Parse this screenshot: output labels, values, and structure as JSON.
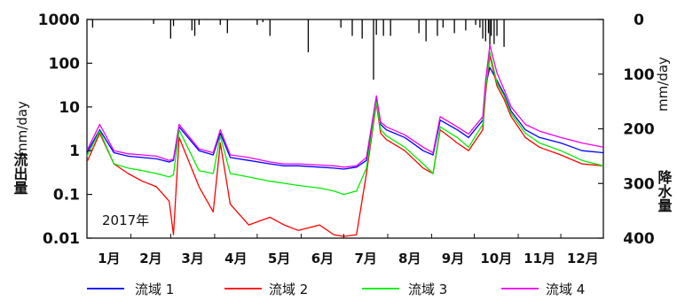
{
  "chart_data": {
    "type": "line",
    "annotation": "2017年",
    "left_axis": {
      "label_name": "流出量",
      "label_unit": "mm/day",
      "scale": "log",
      "ylim": [
        0.01,
        1000
      ],
      "ticks": [
        "0.01",
        "0.1",
        "1",
        "10",
        "100",
        "1000"
      ]
    },
    "right_axis": {
      "label_name": "降水量",
      "label_unit": "mm/day",
      "inverted": true,
      "ylim": [
        0,
        400
      ],
      "ticks": [
        "0",
        "100",
        "200",
        "300",
        "400"
      ]
    },
    "x_ticks": [
      "1月",
      "2月",
      "3月",
      "4月",
      "5月",
      "6月",
      "7月",
      "8月",
      "9月",
      "10月",
      "11月",
      "12月"
    ],
    "legend_position": "bottom",
    "series": [
      {
        "name": "流域 1",
        "color": "#0000ff",
        "x": [
          1,
          10,
          20,
          30,
          40,
          50,
          59,
          62,
          66,
          80,
          90,
          95,
          102,
          115,
          130,
          140,
          150,
          165,
          175,
          182,
          191,
          198,
          205,
          208,
          212,
          225,
          238,
          245,
          250,
          262,
          270,
          280,
          282,
          285,
          290,
          295,
          300,
          310,
          320,
          335,
          350,
          365
        ],
        "y": [
          0.9,
          3.0,
          0.9,
          0.75,
          0.7,
          0.65,
          0.55,
          0.6,
          3.5,
          1.0,
          0.8,
          2.5,
          0.7,
          0.6,
          0.5,
          0.45,
          0.45,
          0.42,
          0.4,
          0.38,
          0.42,
          0.6,
          15.0,
          4.0,
          3.0,
          2.0,
          1.0,
          0.8,
          5.0,
          3.0,
          2.0,
          5.0,
          30.0,
          80.0,
          40.0,
          20.0,
          8.0,
          3.0,
          2.0,
          1.5,
          1.0,
          0.9
        ]
      },
      {
        "name": "流域 2",
        "color": "#ff0000",
        "x": [
          1,
          10,
          20,
          30,
          40,
          50,
          59,
          62,
          66,
          80,
          90,
          95,
          102,
          115,
          130,
          140,
          150,
          165,
          175,
          182,
          191,
          198,
          205,
          208,
          212,
          225,
          238,
          245,
          250,
          262,
          270,
          280,
          282,
          285,
          290,
          295,
          300,
          310,
          320,
          335,
          350,
          365
        ],
        "y": [
          0.55,
          2.5,
          0.5,
          0.3,
          0.2,
          0.15,
          0.07,
          0.012,
          2.0,
          0.15,
          0.04,
          1.5,
          0.06,
          0.02,
          0.03,
          0.02,
          0.015,
          0.02,
          0.012,
          0.011,
          0.012,
          0.3,
          12.0,
          2.5,
          1.8,
          1.0,
          0.4,
          0.3,
          3.0,
          1.5,
          1.0,
          3.0,
          20.0,
          150.0,
          30.0,
          15.0,
          6.0,
          2.0,
          1.2,
          0.8,
          0.5,
          0.45
        ]
      },
      {
        "name": "流域 3",
        "color": "#00ee00",
        "x": [
          1,
          10,
          20,
          30,
          40,
          50,
          59,
          62,
          66,
          80,
          90,
          95,
          102,
          115,
          130,
          140,
          150,
          165,
          175,
          182,
          191,
          198,
          205,
          208,
          212,
          225,
          238,
          245,
          250,
          262,
          270,
          280,
          282,
          285,
          290,
          295,
          300,
          310,
          320,
          335,
          350,
          365
        ],
        "y": [
          0.75,
          2.8,
          0.5,
          0.4,
          0.35,
          0.3,
          0.25,
          0.28,
          3.0,
          0.35,
          0.3,
          2.2,
          0.3,
          0.25,
          0.2,
          0.18,
          0.16,
          0.14,
          0.12,
          0.1,
          0.12,
          0.4,
          13.0,
          3.0,
          2.2,
          1.2,
          0.5,
          0.3,
          3.5,
          2.0,
          1.2,
          4.0,
          25.0,
          180.0,
          35.0,
          18.0,
          7.0,
          2.5,
          1.5,
          1.0,
          0.6,
          0.45
        ]
      },
      {
        "name": "流域 4",
        "color": "#ee00ee",
        "x": [
          1,
          10,
          20,
          30,
          40,
          50,
          59,
          62,
          66,
          80,
          90,
          95,
          102,
          115,
          130,
          140,
          150,
          165,
          175,
          182,
          191,
          198,
          205,
          208,
          212,
          225,
          238,
          245,
          250,
          262,
          270,
          280,
          282,
          285,
          290,
          295,
          300,
          310,
          320,
          335,
          350,
          365
        ],
        "y": [
          1.0,
          4.0,
          1.0,
          0.85,
          0.8,
          0.75,
          0.6,
          0.65,
          4.0,
          1.1,
          0.9,
          3.0,
          0.8,
          0.7,
          0.55,
          0.5,
          0.5,
          0.47,
          0.45,
          0.42,
          0.45,
          0.7,
          18.0,
          4.5,
          3.5,
          2.3,
          1.2,
          0.9,
          6.0,
          3.5,
          2.4,
          6.0,
          40.0,
          260.0,
          60.0,
          25.0,
          10.0,
          4.0,
          2.8,
          2.0,
          1.5,
          1.2
        ]
      }
    ],
    "precipitation": {
      "name": "降水量",
      "color": "#000000",
      "x": [
        5,
        48,
        60,
        62,
        75,
        77,
        80,
        95,
        100,
        121,
        125,
        130,
        157,
        180,
        188,
        195,
        203,
        205,
        210,
        215,
        235,
        240,
        248,
        252,
        260,
        268,
        275,
        278,
        280,
        282,
        284,
        285,
        286,
        288,
        290,
        295
      ],
      "values": [
        15,
        8,
        35,
        12,
        20,
        30,
        10,
        10,
        25,
        10,
        5,
        30,
        60,
        15,
        30,
        35,
        110,
        28,
        30,
        30,
        25,
        40,
        30,
        15,
        25,
        20,
        10,
        15,
        35,
        40,
        25,
        50,
        30,
        45,
        30,
        50
      ]
    }
  },
  "legend": {
    "items": [
      {
        "label": "流域 1",
        "color": "#0000ff"
      },
      {
        "label": "流域 2",
        "color": "#ff0000"
      },
      {
        "label": "流域 3",
        "color": "#00ee00"
      },
      {
        "label": "流域 4",
        "color": "#ee00ee"
      }
    ]
  }
}
